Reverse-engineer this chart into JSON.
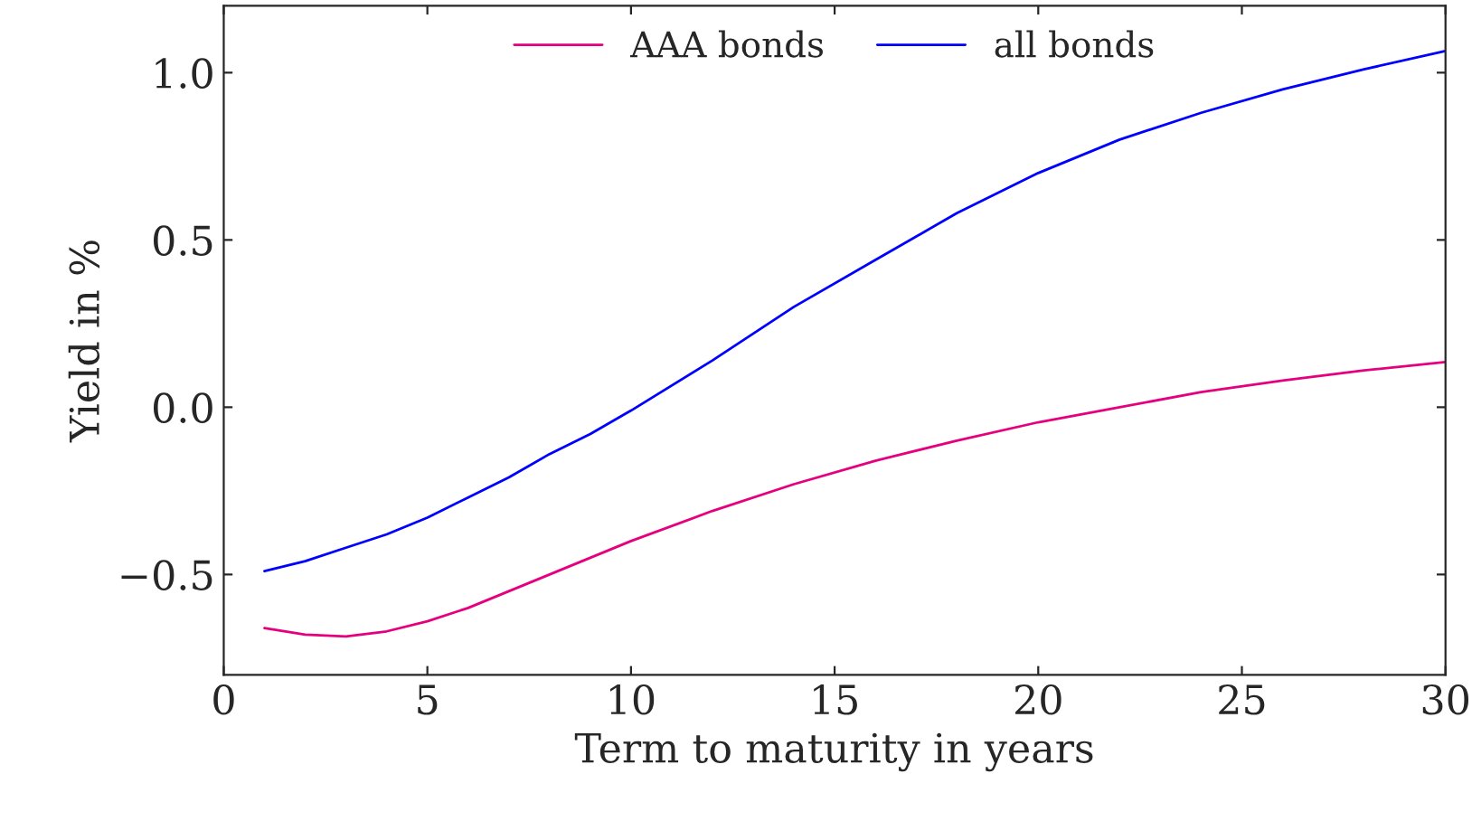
{
  "chart_data": {
    "type": "line",
    "xlabel": "Term to maturity in years",
    "ylabel": "Yield in %",
    "x": [
      1,
      2,
      3,
      4,
      5,
      6,
      7,
      8,
      9,
      10,
      12,
      14,
      16,
      18,
      20,
      22,
      24,
      26,
      28,
      30
    ],
    "series": [
      {
        "name": "AAA bonds",
        "color": "#e6007e",
        "values": [
          -0.66,
          -0.68,
          -0.685,
          -0.67,
          -0.64,
          -0.6,
          -0.55,
          -0.5,
          -0.45,
          -0.4,
          -0.31,
          -0.23,
          -0.16,
          -0.1,
          -0.045,
          0.0,
          0.045,
          0.08,
          0.11,
          0.135
        ]
      },
      {
        "name": "all bonds",
        "color": "#0000ff",
        "values": [
          -0.49,
          -0.46,
          -0.42,
          -0.38,
          -0.33,
          -0.27,
          -0.21,
          -0.14,
          -0.08,
          -0.01,
          0.14,
          0.3,
          0.44,
          0.58,
          0.7,
          0.8,
          0.88,
          0.95,
          1.01,
          1.065
        ]
      }
    ],
    "xlim": [
      0,
      30
    ],
    "xticks": [
      0,
      5,
      10,
      15,
      20,
      25,
      30
    ],
    "ylim": [
      -0.8,
      1.2
    ],
    "yticks": [
      {
        "value": -0.5,
        "label": "−0.5"
      },
      {
        "value": 0,
        "label": "0.0"
      },
      {
        "value": 0.5,
        "label": "0.5"
      },
      {
        "value": 1,
        "label": "1.0"
      }
    ],
    "grid": false,
    "legend": "top",
    "marker": "none",
    "line_style": "solid"
  }
}
